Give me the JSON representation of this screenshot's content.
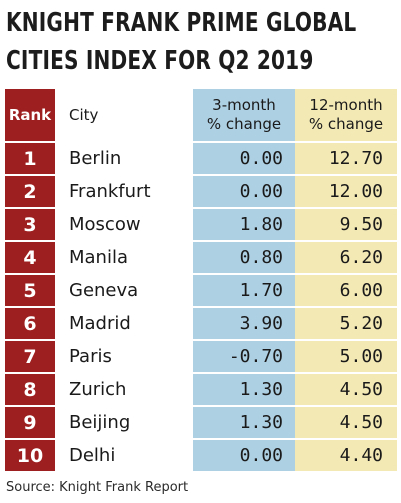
{
  "title": {
    "line1": "KNIGHT FRANK PRIME GLOBAL",
    "line2": "CITIES INDEX FOR Q2 2019"
  },
  "columns": {
    "rank": "Rank",
    "city": "City",
    "three_month": [
      "3-month",
      "% change"
    ],
    "twelve_month": [
      "12-month",
      "% change"
    ]
  },
  "source": "Source: Knight Frank Report",
  "colors": {
    "rank_column": "#9e1f1f",
    "three_month_column": "#aed0e3",
    "twelve_month_column": "#f3e9b5"
  },
  "chart_data": {
    "type": "table",
    "title": "KNIGHT FRANK PRIME GLOBAL CITIES INDEX FOR Q2 2019",
    "columns": [
      "Rank",
      "City",
      "3-month % change",
      "12-month % change"
    ],
    "rows": [
      {
        "rank": "1",
        "city": "Berlin",
        "three_month": "0.00",
        "twelve_month": "12.70"
      },
      {
        "rank": "2",
        "city": "Frankfurt",
        "three_month": "0.00",
        "twelve_month": "12.00"
      },
      {
        "rank": "3",
        "city": "Moscow",
        "three_month": "1.80",
        "twelve_month": "9.50"
      },
      {
        "rank": "4",
        "city": "Manila",
        "three_month": "0.80",
        "twelve_month": "6.20"
      },
      {
        "rank": "5",
        "city": "Geneva",
        "three_month": "1.70",
        "twelve_month": "6.00"
      },
      {
        "rank": "6",
        "city": "Madrid",
        "three_month": "3.90",
        "twelve_month": "5.20"
      },
      {
        "rank": "7",
        "city": "Paris",
        "three_month": "-0.70",
        "twelve_month": "5.00"
      },
      {
        "rank": "8",
        "city": "Zurich",
        "three_month": "1.30",
        "twelve_month": "4.50"
      },
      {
        "rank": "9",
        "city": "Beijing",
        "three_month": "1.30",
        "twelve_month": "4.50"
      },
      {
        "rank": "10",
        "city": "Delhi",
        "three_month": "0.00",
        "twelve_month": "4.40"
      }
    ],
    "source": "Source: Knight Frank Report"
  }
}
